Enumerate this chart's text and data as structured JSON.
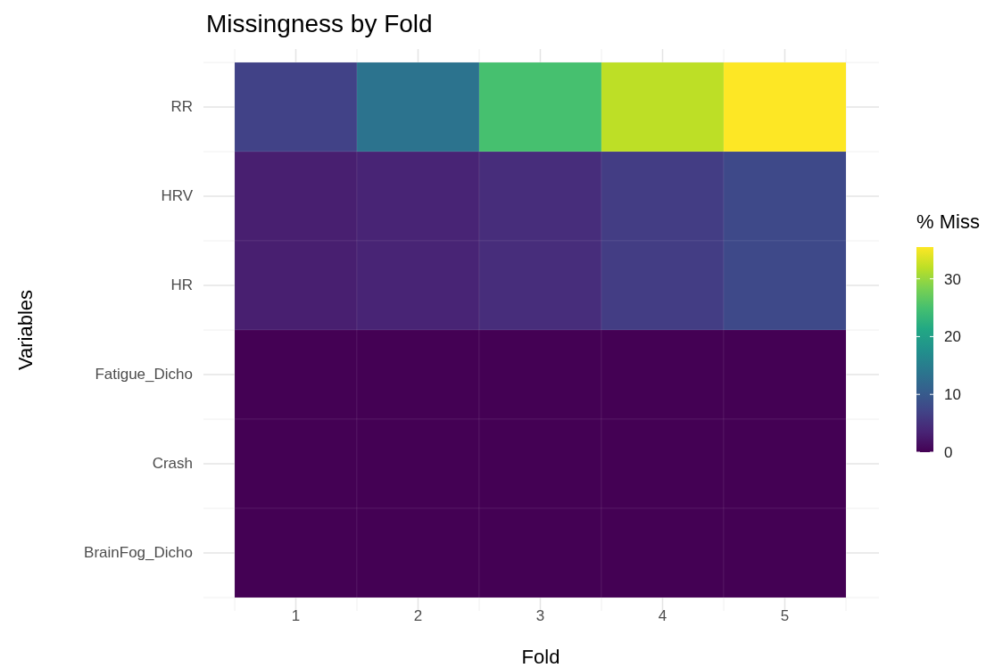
{
  "chart_data": {
    "type": "heatmap",
    "title": "Missingness by Fold",
    "xlabel": "Fold",
    "ylabel": "Variables",
    "clabel": "% Miss",
    "categories": [
      "1",
      "2",
      "3",
      "4",
      "5"
    ],
    "y_categories": [
      "RR",
      "HRV",
      "HR",
      "Fatigue_Dicho",
      "Crash",
      "BrainFog_Dicho"
    ],
    "cells": [
      [
        7,
        13.5,
        25,
        32,
        35.5
      ],
      [
        3,
        3.5,
        4.5,
        6.3,
        7.8
      ],
      [
        3,
        3.5,
        4.5,
        6.3,
        7.8
      ],
      [
        0,
        0,
        0,
        0,
        0
      ],
      [
        0,
        0,
        0,
        0,
        0
      ],
      [
        0,
        0,
        0,
        0,
        0
      ]
    ],
    "clim": [
      0,
      35.5
    ],
    "cticks": [
      0,
      10,
      20,
      30
    ],
    "grid": true
  }
}
